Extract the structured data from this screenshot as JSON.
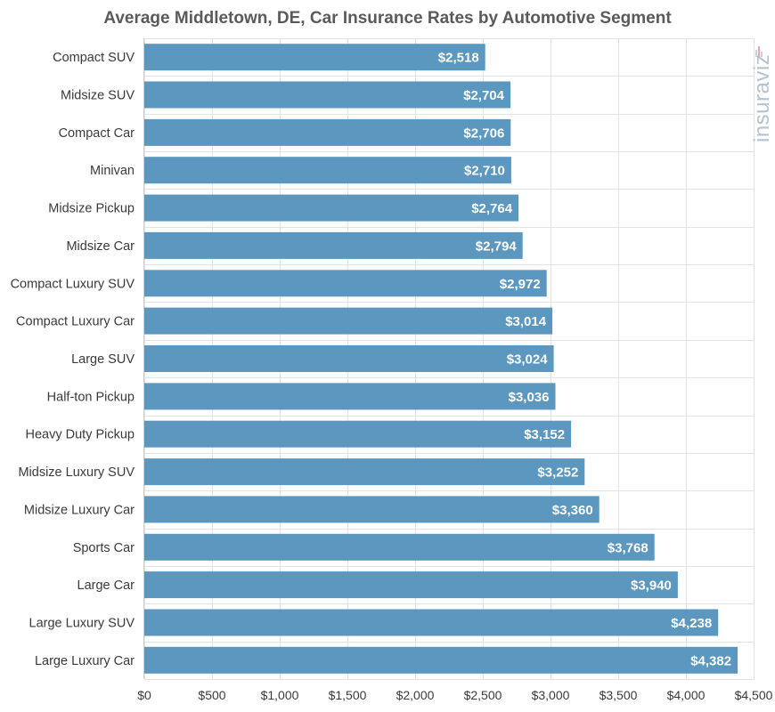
{
  "chart_data": {
    "type": "bar",
    "orientation": "horizontal",
    "title": "Average Middletown, DE, Car Insurance Rates by Automotive Segment",
    "categories": [
      "Compact SUV",
      "Midsize SUV",
      "Compact Car",
      "Minivan",
      "Midsize Pickup",
      "Midsize Car",
      "Compact Luxury SUV",
      "Compact Luxury Car",
      "Large SUV",
      "Half-ton Pickup",
      "Heavy Duty Pickup",
      "Midsize Luxury SUV",
      "Midsize Luxury Car",
      "Sports Car",
      "Large Car",
      "Large Luxury SUV",
      "Large Luxury Car"
    ],
    "values": [
      2518,
      2704,
      2706,
      2710,
      2764,
      2794,
      2972,
      3014,
      3024,
      3036,
      3152,
      3252,
      3360,
      3768,
      3940,
      4238,
      4382
    ],
    "value_labels": [
      "$2,518",
      "$2,704",
      "$2,706",
      "$2,710",
      "$2,764",
      "$2,794",
      "$2,972",
      "$3,014",
      "$3,024",
      "$3,036",
      "$3,152",
      "$3,252",
      "$3,360",
      "$3,768",
      "$3,940",
      "$4,238",
      "$4,382"
    ],
    "xlim": [
      0,
      4500
    ],
    "xticks": [
      0,
      500,
      1000,
      1500,
      2000,
      2500,
      3000,
      3500,
      4000,
      4500
    ],
    "xtick_labels": [
      "$0",
      "$500",
      "$1,000",
      "$1,500",
      "$2,000",
      "$2,500",
      "$3,000",
      "$3,500",
      "$4,000",
      "$4,500"
    ],
    "xlabel": "",
    "ylabel": "",
    "grid": true,
    "legend": "none",
    "bar_color": "#5b97bf"
  },
  "watermark": {
    "text": "insuraviz",
    "bars_colors": [
      "#e6a4b4",
      "#c8cfd6"
    ]
  }
}
